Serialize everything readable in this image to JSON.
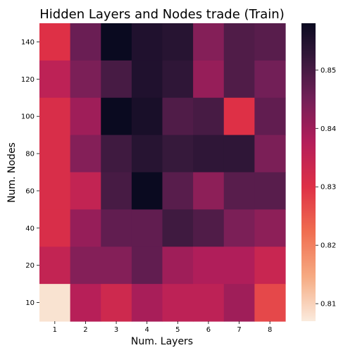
{
  "chart_data": {
    "type": "heatmap",
    "title": "Hidden Layers and Nodes trade (Train)",
    "xlabel": "Num. Layers",
    "ylabel": "Num. Nodes",
    "x_categories": [
      "1",
      "2",
      "3",
      "4",
      "5",
      "6",
      "7",
      "8"
    ],
    "y_categories": [
      "140",
      "120",
      "100",
      "80",
      "60",
      "40",
      "20",
      "10"
    ],
    "values": [
      [
        0.83,
        0.846,
        0.858,
        0.855,
        0.854,
        0.843,
        0.849,
        0.848
      ],
      [
        0.836,
        0.844,
        0.85,
        0.855,
        0.853,
        0.841,
        0.849,
        0.845
      ],
      [
        0.831,
        0.84,
        0.858,
        0.856,
        0.849,
        0.85,
        0.83,
        0.847
      ],
      [
        0.831,
        0.843,
        0.851,
        0.854,
        0.852,
        0.853,
        0.853,
        0.844
      ],
      [
        0.831,
        0.835,
        0.85,
        0.858,
        0.848,
        0.842,
        0.848,
        0.848
      ],
      [
        0.831,
        0.841,
        0.847,
        0.847,
        0.851,
        0.849,
        0.844,
        0.842
      ],
      [
        0.835,
        0.843,
        0.843,
        0.847,
        0.84,
        0.838,
        0.838,
        0.834
      ],
      [
        0.808,
        0.837,
        0.833,
        0.839,
        0.836,
        0.836,
        0.84,
        0.827
      ]
    ],
    "colorbar": {
      "range": [
        0.807,
        0.858
      ],
      "ticks": [
        "0.81",
        "0.82",
        "0.83",
        "0.84",
        "0.85"
      ],
      "colormap": "rocket_r"
    }
  }
}
